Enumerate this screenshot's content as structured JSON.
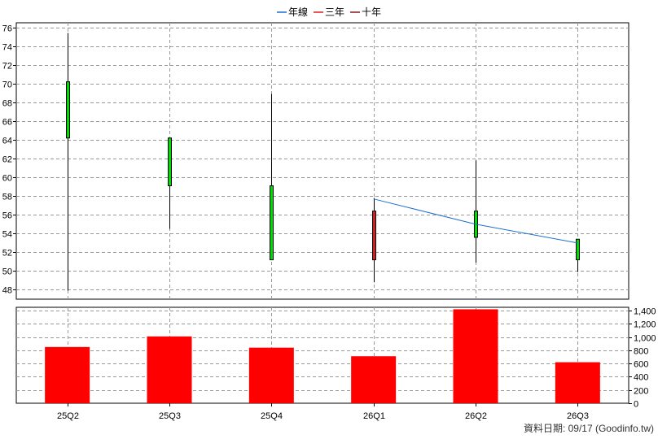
{
  "chart_data": {
    "type": "candlestick",
    "categories": [
      "25Q2",
      "25Q3",
      "25Q4",
      "26Q1",
      "26Q2",
      "26Q3"
    ],
    "legend": [
      {
        "label": "年線",
        "color": "#1e6fd0"
      },
      {
        "label": "三年",
        "color": "#e02020"
      },
      {
        "label": "十年",
        "color": "#8b1a1a"
      }
    ],
    "price": {
      "ylim": [
        47,
        76.5
      ],
      "yticks": [
        48,
        50,
        52,
        54,
        56,
        58,
        60,
        62,
        64,
        66,
        68,
        70,
        72,
        74,
        76
      ],
      "candles": [
        {
          "open": 64.2,
          "close": 70.2,
          "high": 75.4,
          "low": 47.9,
          "color": "#00dd00"
        },
        {
          "open": 59.1,
          "close": 64.2,
          "high": 64.2,
          "low": 54.5,
          "color": "#00dd00"
        },
        {
          "open": 51.2,
          "close": 59.1,
          "high": 68.9,
          "low": 51.2,
          "color": "#00dd00"
        },
        {
          "open": 56.4,
          "close": 51.2,
          "high": 57.8,
          "low": 48.8,
          "color": "#cc2222"
        },
        {
          "open": 53.6,
          "close": 56.4,
          "high": 61.8,
          "low": 50.9,
          "color": "#00dd00"
        },
        {
          "open": 51.2,
          "close": 53.4,
          "high": 53.4,
          "low": 49.9,
          "color": "#00dd00"
        }
      ],
      "annual_line": {
        "color": "#1e6fd0",
        "points": [
          [
            3,
            57.7
          ],
          [
            4,
            55.0
          ],
          [
            5,
            53.0
          ]
        ]
      }
    },
    "volume": {
      "ylim": [
        0,
        1450
      ],
      "yticks": [
        "0",
        "200",
        "400",
        "600",
        "800",
        "1,000",
        "1,200",
        "1,400"
      ],
      "ytick_values": [
        0,
        200,
        400,
        600,
        800,
        1000,
        1200,
        1400
      ],
      "values": [
        850,
        1010,
        840,
        710,
        1420,
        620
      ],
      "color": "#ff0000"
    },
    "grid": true
  },
  "footer": "資料日期: 09/17  (Goodinfo.tw)"
}
